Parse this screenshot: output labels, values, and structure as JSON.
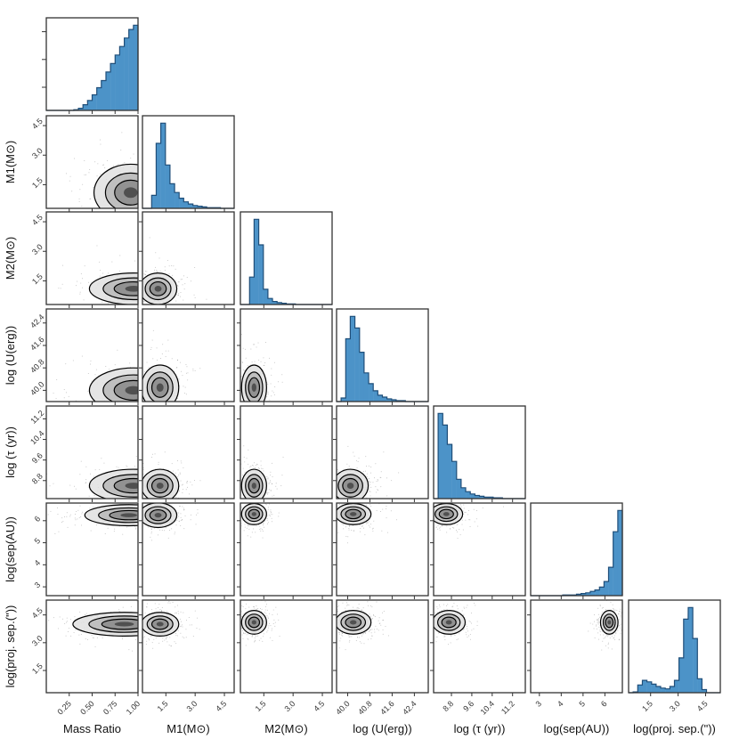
{
  "chart_data": {
    "type": "corner",
    "title": "",
    "variables": [
      {
        "key": "q",
        "label": "Mass Ratio",
        "range": [
          0.0,
          1.0
        ],
        "ticks": [
          "0.25",
          "0.50",
          "0.75",
          "1.00"
        ],
        "tick_values": [
          0.25,
          0.5,
          0.75,
          1.0
        ]
      },
      {
        "key": "m1",
        "label": "M1(M⊙)",
        "range": [
          0.3,
          5.0
        ],
        "ticks": [
          "1.5",
          "3.0",
          "4.5"
        ],
        "tick_values": [
          1.5,
          3.0,
          4.5
        ]
      },
      {
        "key": "m2",
        "label": "M2(M⊙)",
        "range": [
          0.3,
          5.0
        ],
        "ticks": [
          "1.5",
          "3.0",
          "4.5"
        ],
        "tick_values": [
          1.5,
          3.0,
          4.5
        ]
      },
      {
        "key": "logU",
        "label": "log (U(erg))",
        "range": [
          39.6,
          42.9
        ],
        "ticks": [
          "40.0",
          "40.8",
          "41.6",
          "42.4"
        ],
        "tick_values": [
          40.0,
          40.8,
          41.6,
          42.4
        ]
      },
      {
        "key": "logtau",
        "label": "log (τ (yr))",
        "range": [
          8.1,
          11.7
        ],
        "ticks": [
          "8.8",
          "9.6",
          "10.4",
          "11.2"
        ],
        "tick_values": [
          8.8,
          9.6,
          10.4,
          11.2
        ]
      },
      {
        "key": "logsep",
        "label": "log(sep(AU))",
        "range": [
          2.6,
          6.8
        ],
        "ticks": [
          "3",
          "4",
          "5",
          "6"
        ],
        "tick_values": [
          3,
          4,
          5,
          6
        ]
      },
      {
        "key": "logproj",
        "label": "log(proj. sep.(\"))",
        "range": [
          0.3,
          5.3
        ],
        "ticks": [
          "1.5",
          "3.0",
          "4.5"
        ],
        "tick_values": [
          1.5,
          3.0,
          4.5
        ]
      }
    ],
    "histograms": [
      {
        "var": "q",
        "bins": 20,
        "counts": [
          0,
          0,
          0,
          0,
          0,
          0,
          1,
          3,
          8,
          14,
          22,
          32,
          42,
          54,
          66,
          78,
          90,
          102,
          114,
          120
        ]
      },
      {
        "var": "m1",
        "bins": 20,
        "counts": [
          0,
          0,
          18,
          90,
          118,
          60,
          34,
          22,
          14,
          9,
          6,
          4,
          3,
          2,
          1,
          1,
          1,
          0,
          0,
          0
        ]
      },
      {
        "var": "m2",
        "bins": 20,
        "counts": [
          0,
          0,
          45,
          140,
          98,
          25,
          10,
          5,
          3,
          2,
          1,
          1,
          0,
          0,
          0,
          0,
          0,
          0,
          0,
          0
        ]
      },
      {
        "var": "logU",
        "bins": 20,
        "counts": [
          0,
          4,
          70,
          95,
          82,
          55,
          32,
          20,
          12,
          7,
          5,
          3,
          2,
          1,
          1,
          0,
          0,
          0,
          0,
          0
        ]
      },
      {
        "var": "logtau",
        "bins": 20,
        "counts": [
          0,
          110,
          95,
          70,
          48,
          25,
          14,
          9,
          6,
          4,
          3,
          2,
          2,
          1,
          1,
          0,
          0,
          0,
          0,
          0
        ]
      },
      {
        "var": "logsep",
        "bins": 20,
        "counts": [
          0,
          0,
          0,
          0,
          0,
          0,
          0,
          1,
          1,
          1,
          2,
          3,
          4,
          6,
          8,
          12,
          20,
          40,
          90,
          120
        ]
      },
      {
        "var": "logproj",
        "bins": 20,
        "counts": [
          0,
          1,
          10,
          16,
          14,
          11,
          8,
          6,
          5,
          8,
          16,
          45,
          95,
          110,
          70,
          18,
          4,
          0,
          0,
          0
        ]
      }
    ],
    "joint_modes": [
      {
        "x": "q",
        "y": "m1",
        "center": [
          0.92,
          1.1
        ],
        "spread": [
          0.25,
          0.9
        ]
      },
      {
        "x": "q",
        "y": "m2",
        "center": [
          0.95,
          1.1
        ],
        "spread": [
          0.3,
          0.5
        ]
      },
      {
        "x": "m1",
        "y": "m2",
        "center": [
          1.1,
          1.1
        ],
        "spread": [
          0.6,
          0.5
        ]
      },
      {
        "x": "q",
        "y": "logU",
        "center": [
          0.95,
          40.0
        ],
        "spread": [
          0.3,
          0.5
        ]
      },
      {
        "x": "m1",
        "y": "logU",
        "center": [
          1.2,
          40.1
        ],
        "spread": [
          0.6,
          0.5
        ]
      },
      {
        "x": "m2",
        "y": "logU",
        "center": [
          1.0,
          40.1
        ],
        "spread": [
          0.4,
          0.5
        ]
      },
      {
        "x": "q",
        "y": "logtau",
        "center": [
          0.95,
          8.6
        ],
        "spread": [
          0.3,
          0.4
        ]
      },
      {
        "x": "m1",
        "y": "logtau",
        "center": [
          1.2,
          8.6
        ],
        "spread": [
          0.6,
          0.4
        ]
      },
      {
        "x": "m2",
        "y": "logtau",
        "center": [
          1.0,
          8.6
        ],
        "spread": [
          0.4,
          0.4
        ]
      },
      {
        "x": "logU",
        "y": "logtau",
        "center": [
          40.1,
          8.6
        ],
        "spread": [
          0.4,
          0.4
        ]
      },
      {
        "x": "q",
        "y": "logsep",
        "center": [
          0.9,
          6.25
        ],
        "spread": [
          0.3,
          0.3
        ]
      },
      {
        "x": "m1",
        "y": "logsep",
        "center": [
          1.1,
          6.25
        ],
        "spread": [
          0.6,
          0.35
        ]
      },
      {
        "x": "m2",
        "y": "logsep",
        "center": [
          1.0,
          6.3
        ],
        "spread": [
          0.4,
          0.3
        ]
      },
      {
        "x": "logU",
        "y": "logsep",
        "center": [
          40.2,
          6.3
        ],
        "spread": [
          0.4,
          0.3
        ]
      },
      {
        "x": "logtau",
        "y": "logsep",
        "center": [
          8.6,
          6.3
        ],
        "spread": [
          0.4,
          0.3
        ]
      },
      {
        "x": "q",
        "y": "logproj",
        "center": [
          0.85,
          4.0
        ],
        "spread": [
          0.35,
          0.4
        ]
      },
      {
        "x": "m1",
        "y": "logproj",
        "center": [
          1.2,
          4.0
        ],
        "spread": [
          0.6,
          0.4
        ]
      },
      {
        "x": "m2",
        "y": "logproj",
        "center": [
          1.0,
          4.1
        ],
        "spread": [
          0.4,
          0.4
        ]
      },
      {
        "x": "logU",
        "y": "logproj",
        "center": [
          40.2,
          4.1
        ],
        "spread": [
          0.4,
          0.4
        ]
      },
      {
        "x": "logtau",
        "y": "logproj",
        "center": [
          8.7,
          4.1
        ],
        "spread": [
          0.4,
          0.4
        ]
      },
      {
        "x": "logsep",
        "y": "logproj",
        "center": [
          6.2,
          4.1
        ],
        "spread": [
          0.25,
          0.4
        ]
      }
    ],
    "colors": {
      "hist_fill": "#4c93c8",
      "hist_edge": "#1f4e79",
      "axes": "#333333",
      "contour": "#000000",
      "scatter": "#777777"
    }
  }
}
